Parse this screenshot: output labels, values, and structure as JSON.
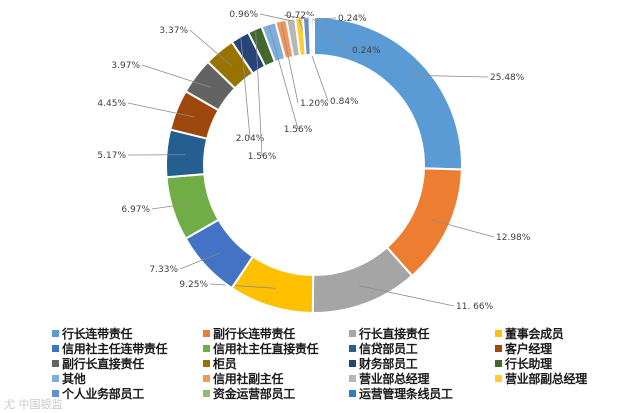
{
  "chart_data": {
    "type": "pie",
    "donut": true,
    "title": "",
    "legend_position": "bottom",
    "label_texts": [
      "25.48%",
      "12.98%",
      "11. 66%",
      "9.25%",
      "7.33%",
      "6.97%",
      "5.17%",
      "4.45%",
      "3.97%",
      "3.37%",
      "2.04%",
      "1.56%",
      "1.56%",
      "1.20%",
      "0.96%",
      "0.84%",
      "0.72%",
      "0.24%",
      "0.24%"
    ],
    "slices": [
      {
        "name": "行长连带责任",
        "value": 25.48,
        "color": "#5B9BD5"
      },
      {
        "name": "副行长连带责任",
        "value": 12.98,
        "color": "#ED7D31"
      },
      {
        "name": "行长直接责任",
        "value": 11.66,
        "color": "#A5A5A5"
      },
      {
        "name": "董事会成员",
        "value": 9.25,
        "color": "#FFC000"
      },
      {
        "name": "信用社主任连带责任",
        "value": 7.33,
        "color": "#4472C4"
      },
      {
        "name": "信用社主任直接责任",
        "value": 6.97,
        "color": "#70AD47"
      },
      {
        "name": "信贷部员工",
        "value": 5.17,
        "color": "#255E91"
      },
      {
        "name": "客户经理",
        "value": 4.45,
        "color": "#9E480E"
      },
      {
        "name": "副行长直接责任",
        "value": 3.97,
        "color": "#636363"
      },
      {
        "name": "柜员",
        "value": 3.37,
        "color": "#997300"
      },
      {
        "name": "财务部员工",
        "value": 2.04,
        "color": "#264478"
      },
      {
        "name": "行长助理",
        "value": 1.56,
        "color": "#43682B"
      },
      {
        "name": "其他",
        "value": 1.56,
        "color": "#7CAFDD"
      },
      {
        "name": "信用社副主任",
        "value": 1.2,
        "color": "#F1975A"
      },
      {
        "name": "营业部总经理",
        "value": 0.96,
        "color": "#B7B7B7"
      },
      {
        "name": "营业部副总经理",
        "value": 0.84,
        "color": "#FFCD33"
      },
      {
        "name": "个人业务部员工",
        "value": 0.72,
        "color": "#698ED0"
      },
      {
        "name": "资金运营部员工",
        "value": 0.24,
        "color": "#8CC168"
      },
      {
        "name": "运营管理条线员工",
        "value": 0.24,
        "color": "#327DC2"
      }
    ]
  },
  "watermark": "尤 中国银监"
}
